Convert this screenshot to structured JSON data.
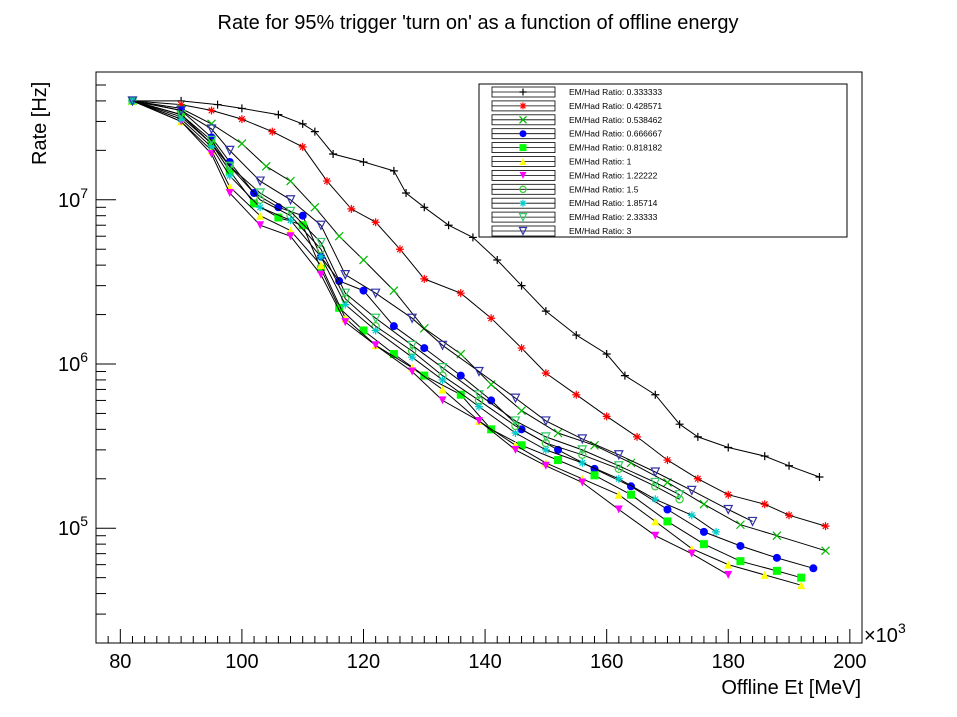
{
  "chart_data": {
    "type": "line",
    "title": "Rate for 95% trigger 'turn on' as a function of offline energy",
    "xlabel": "Offline Et [MeV]",
    "ylabel": "Rate [Hz]",
    "x_multiplier": "×10",
    "x_multiplier_exp": "3",
    "x_scale_note": "x values in units of 10^3 MeV",
    "xlim": [
      76,
      202
    ],
    "ylim": [
      20000,
      60000000
    ],
    "yscale": "log",
    "x_ticks": [
      "80",
      "100",
      "120",
      "140",
      "160",
      "180",
      "200"
    ],
    "y_ticks": [
      {
        "base": "10",
        "exp": "5",
        "value": 100000
      },
      {
        "base": "10",
        "exp": "6",
        "value": 1000000
      },
      {
        "base": "10",
        "exp": "7",
        "value": 10000000
      }
    ],
    "legend_position": "top-right",
    "series": [
      {
        "name": "EM/Had Ratio: 0.333333",
        "color": "#000000",
        "marker": "plus",
        "x": [
          82,
          90,
          96,
          100,
          106,
          110,
          112,
          115,
          120,
          125,
          127,
          130,
          134,
          138,
          142,
          146,
          150,
          155,
          160,
          163,
          168,
          172,
          175,
          180,
          186,
          190,
          195
        ],
        "y": [
          40000000,
          40000000,
          38000000,
          36000000,
          33000000,
          29000000,
          26000000,
          19000000,
          17000000,
          15000000,
          11000000,
          9000000,
          7000000,
          5900000,
          4300000,
          3000000,
          2100000,
          1500000,
          1150000,
          850000,
          650000,
          430000,
          360000,
          310000,
          275000,
          240000,
          205000
        ]
      },
      {
        "name": "EM/Had Ratio: 0.428571",
        "color": "#ff0000",
        "marker": "star",
        "x": [
          82,
          90,
          95,
          100,
          105,
          110,
          114,
          118,
          122,
          126,
          130,
          136,
          141,
          146,
          150,
          155,
          160,
          165,
          170,
          175,
          180,
          186,
          190,
          196
        ],
        "y": [
          40000000,
          38000000,
          35000000,
          31000000,
          26000000,
          21000000,
          13000000,
          8800000,
          7300000,
          5000000,
          3300000,
          2700000,
          1900000,
          1250000,
          880000,
          650000,
          480000,
          360000,
          260000,
          200000,
          160000,
          140000,
          120000,
          103000
        ]
      },
      {
        "name": "EM/Had Ratio: 0.538462",
        "color": "#00bb00",
        "marker": "x",
        "x": [
          82,
          90,
          95,
          100,
          104,
          108,
          112,
          116,
          120,
          125,
          130,
          136,
          141,
          146,
          152,
          158,
          164,
          170,
          176,
          182,
          188,
          196
        ],
        "y": [
          40000000,
          36000000,
          29000000,
          22000000,
          16000000,
          13000000,
          9000000,
          6000000,
          4300000,
          2800000,
          1650000,
          1150000,
          750000,
          520000,
          380000,
          320000,
          250000,
          190000,
          140000,
          105000,
          90000,
          73000
        ]
      },
      {
        "name": "EM/Had Ratio: 0.666667",
        "color": "#0000ff",
        "marker": "circle",
        "x": [
          82,
          90,
          95,
          98,
          102,
          106,
          110,
          113,
          116,
          120,
          125,
          130,
          136,
          141,
          146,
          152,
          158,
          164,
          170,
          176,
          182,
          188,
          194
        ],
        "y": [
          40000000,
          35000000,
          24000000,
          17000000,
          11000000,
          9000000,
          8000000,
          4500000,
          3200000,
          2800000,
          1700000,
          1250000,
          850000,
          600000,
          400000,
          300000,
          230000,
          180000,
          130000,
          95000,
          78000,
          66000,
          57000
        ]
      },
      {
        "name": "EM/Had Ratio: 0.818182",
        "color": "#00ff00",
        "marker": "square",
        "x": [
          82,
          90,
          95,
          98,
          102,
          106,
          110,
          113,
          116,
          120,
          125,
          130,
          136,
          141,
          146,
          152,
          158,
          164,
          170,
          176,
          182,
          188,
          192
        ],
        "y": [
          40000000,
          33000000,
          22000000,
          15000000,
          9500000,
          7800000,
          7000000,
          3800000,
          2200000,
          1600000,
          1150000,
          850000,
          650000,
          400000,
          320000,
          260000,
          210000,
          160000,
          110000,
          80000,
          63000,
          55000,
          50000
        ]
      },
      {
        "name": "EM/Had Ratio: 1",
        "color": "#ffff00",
        "marker": "triangle-up",
        "x": [
          82,
          90,
          95,
          98,
          103,
          108,
          113,
          117,
          122,
          128,
          133,
          139,
          145,
          150,
          156,
          162,
          168,
          174,
          180,
          186,
          192
        ],
        "y": [
          40000000,
          30000000,
          20000000,
          12000000,
          8000000,
          6500000,
          4000000,
          1900000,
          1300000,
          950000,
          700000,
          450000,
          320000,
          250000,
          200000,
          160000,
          110000,
          75000,
          60000,
          52000,
          45000
        ]
      },
      {
        "name": "EM/Had Ratio: 1.22222",
        "color": "#ff00ff",
        "marker": "triangle-down",
        "x": [
          82,
          90,
          95,
          98,
          103,
          108,
          113,
          117,
          122,
          128,
          133,
          139,
          145,
          150,
          156,
          162,
          168,
          174,
          180
        ],
        "y": [
          40000000,
          30000000,
          19000000,
          11000000,
          7000000,
          6000000,
          3500000,
          1800000,
          1300000,
          900000,
          600000,
          450000,
          300000,
          240000,
          190000,
          130000,
          90000,
          70000,
          52000
        ]
      },
      {
        "name": "EM/Had Ratio: 1.5",
        "color": "#33cc33",
        "marker": "circle-open",
        "x": [
          82,
          90,
          95,
          98,
          103,
          108,
          113,
          117,
          122,
          128,
          133,
          139,
          145,
          150,
          156,
          162,
          168,
          172
        ],
        "y": [
          40000000,
          32000000,
          22000000,
          16000000,
          10000000,
          8000000,
          5000000,
          2500000,
          1700000,
          1200000,
          850000,
          600000,
          420000,
          330000,
          280000,
          230000,
          180000,
          150000
        ]
      },
      {
        "name": "EM/Had Ratio: 1.85714",
        "color": "#00cccc",
        "marker": "star-open",
        "x": [
          82,
          90,
          95,
          98,
          103,
          108,
          113,
          117,
          122,
          128,
          133,
          139,
          145,
          150,
          156,
          162,
          168,
          174,
          178
        ],
        "y": [
          40000000,
          31000000,
          21000000,
          14000000,
          9000000,
          7500000,
          4500000,
          2300000,
          1600000,
          1100000,
          800000,
          550000,
          380000,
          300000,
          250000,
          200000,
          150000,
          120000,
          95000
        ]
      },
      {
        "name": "EM/Had Ratio: 2.33333",
        "color": "#33cc66",
        "marker": "triangle-down-open",
        "x": [
          82,
          90,
          95,
          98,
          103,
          108,
          113,
          117,
          122,
          128,
          133,
          139,
          145,
          150,
          156,
          162,
          168,
          172
        ],
        "y": [
          40000000,
          33000000,
          23000000,
          16000000,
          11000000,
          8500000,
          5500000,
          2700000,
          1900000,
          1300000,
          950000,
          650000,
          450000,
          360000,
          300000,
          240000,
          190000,
          160000
        ]
      },
      {
        "name": "EM/Had Ratio: 3",
        "color": "#3333aa",
        "marker": "triangle-down-open",
        "x": [
          82,
          90,
          95,
          98,
          103,
          108,
          113,
          117,
          122,
          128,
          133,
          139,
          145,
          150,
          156,
          162,
          168,
          174,
          180,
          184
        ],
        "y": [
          40000000,
          35000000,
          27000000,
          20000000,
          13000000,
          10000000,
          7000000,
          3500000,
          2700000,
          1900000,
          1300000,
          900000,
          620000,
          450000,
          350000,
          280000,
          220000,
          170000,
          130000,
          110000
        ]
      }
    ]
  }
}
